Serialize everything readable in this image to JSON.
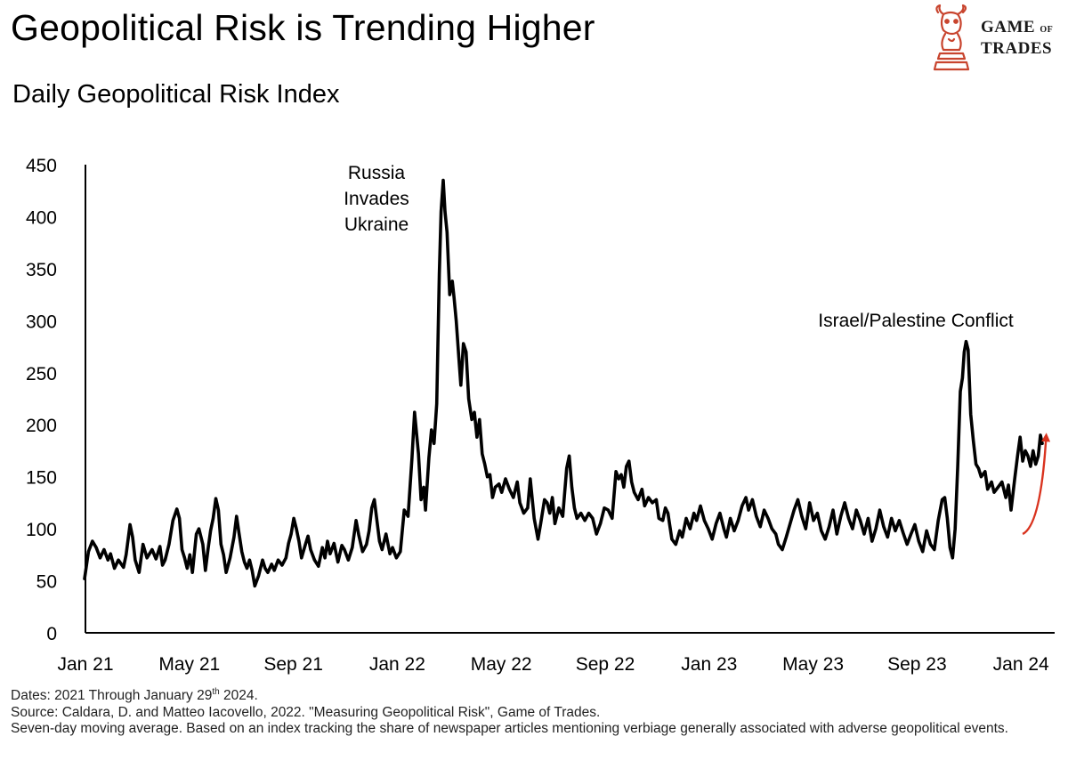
{
  "header": {
    "title": "Geopolitical Risk is Trending Higher",
    "subtitle": "Daily Geopolitical Risk Index"
  },
  "logo": {
    "line1": "GAME",
    "line1_small": "OF",
    "line2": "TRADES",
    "icon": "bull-knight-icon",
    "color": "#c8442e"
  },
  "footnotes": {
    "dates_prefix": "Dates: 2021 Through January 29",
    "dates_sup": "th",
    "dates_suffix": " 2024.",
    "source": "Source: Caldara, D. and Matteo Iacovello, 2022. \"Measuring Geopolitical Risk\", Game of Trades.",
    "method": "Seven-day moving average. Based on an index tracking the share of newspaper articles mentioning verbiage generally associated with adverse geopolitical events."
  },
  "chart_data": {
    "type": "line",
    "title": "Daily Geopolitical Risk Index",
    "xlabel": "",
    "ylabel": "",
    "ylim": [
      0,
      450
    ],
    "yticks": [
      "0",
      "50",
      "100",
      "150",
      "200",
      "250",
      "300",
      "350",
      "400",
      "450"
    ],
    "xlim": [
      0,
      36.9
    ],
    "xticks": [
      {
        "label": "Jan 21",
        "month": 0
      },
      {
        "label": "May 21",
        "month": 4
      },
      {
        "label": "Sep 21",
        "month": 8
      },
      {
        "label": "Jan 22",
        "month": 12
      },
      {
        "label": "May 22",
        "month": 16
      },
      {
        "label": "Sep 22",
        "month": 20
      },
      {
        "label": "Jan 23",
        "month": 24
      },
      {
        "label": "May 23",
        "month": 28
      },
      {
        "label": "Sep 23",
        "month": 32
      },
      {
        "label": "Jan 24",
        "month": 36
      }
    ],
    "line_color": "#000000",
    "series": [
      {
        "name": "Geopolitical Risk Index (7-day MA)",
        "points": [
          [
            0.0,
            52
          ],
          [
            0.15,
            78
          ],
          [
            0.3,
            88
          ],
          [
            0.45,
            82
          ],
          [
            0.6,
            72
          ],
          [
            0.75,
            80
          ],
          [
            0.9,
            70
          ],
          [
            1.0,
            76
          ],
          [
            1.15,
            62
          ],
          [
            1.3,
            70
          ],
          [
            1.5,
            63
          ],
          [
            1.6,
            75
          ],
          [
            1.75,
            104
          ],
          [
            1.85,
            92
          ],
          [
            1.95,
            70
          ],
          [
            2.1,
            58
          ],
          [
            2.25,
            85
          ],
          [
            2.4,
            72
          ],
          [
            2.6,
            80
          ],
          [
            2.75,
            71
          ],
          [
            2.9,
            83
          ],
          [
            3.0,
            65
          ],
          [
            3.1,
            70
          ],
          [
            3.25,
            85
          ],
          [
            3.4,
            108
          ],
          [
            3.55,
            119
          ],
          [
            3.65,
            110
          ],
          [
            3.75,
            80
          ],
          [
            3.85,
            72
          ],
          [
            3.95,
            62
          ],
          [
            4.05,
            75
          ],
          [
            4.15,
            58
          ],
          [
            4.3,
            95
          ],
          [
            4.4,
            100
          ],
          [
            4.55,
            85
          ],
          [
            4.65,
            60
          ],
          [
            4.75,
            80
          ],
          [
            4.85,
            98
          ],
          [
            4.95,
            110
          ],
          [
            5.05,
            129
          ],
          [
            5.15,
            118
          ],
          [
            5.25,
            85
          ],
          [
            5.35,
            75
          ],
          [
            5.45,
            58
          ],
          [
            5.6,
            72
          ],
          [
            5.75,
            92
          ],
          [
            5.85,
            112
          ],
          [
            5.95,
            95
          ],
          [
            6.05,
            78
          ],
          [
            6.15,
            68
          ],
          [
            6.25,
            62
          ],
          [
            6.35,
            70
          ],
          [
            6.45,
            60
          ],
          [
            6.55,
            45
          ],
          [
            6.7,
            55
          ],
          [
            6.85,
            70
          ],
          [
            6.95,
            62
          ],
          [
            7.05,
            58
          ],
          [
            7.2,
            66
          ],
          [
            7.3,
            60
          ],
          [
            7.45,
            70
          ],
          [
            7.6,
            65
          ],
          [
            7.75,
            72
          ],
          [
            7.85,
            86
          ],
          [
            7.95,
            95
          ],
          [
            8.05,
            110
          ],
          [
            8.15,
            100
          ],
          [
            8.25,
            88
          ],
          [
            8.35,
            72
          ],
          [
            8.5,
            85
          ],
          [
            8.6,
            93
          ],
          [
            8.7,
            80
          ],
          [
            8.85,
            70
          ],
          [
            9.0,
            64
          ],
          [
            9.15,
            82
          ],
          [
            9.25,
            72
          ],
          [
            9.35,
            88
          ],
          [
            9.45,
            76
          ],
          [
            9.6,
            86
          ],
          [
            9.75,
            68
          ],
          [
            9.9,
            84
          ],
          [
            10.0,
            80
          ],
          [
            10.15,
            70
          ],
          [
            10.3,
            82
          ],
          [
            10.45,
            108
          ],
          [
            10.55,
            94
          ],
          [
            10.7,
            78
          ],
          [
            10.85,
            85
          ],
          [
            10.95,
            98
          ],
          [
            11.05,
            120
          ],
          [
            11.15,
            128
          ],
          [
            11.25,
            108
          ],
          [
            11.35,
            88
          ],
          [
            11.45,
            80
          ],
          [
            11.6,
            95
          ],
          [
            11.75,
            76
          ],
          [
            11.85,
            82
          ],
          [
            12.0,
            72
          ],
          [
            12.15,
            78
          ],
          [
            12.3,
            118
          ],
          [
            12.45,
            112
          ],
          [
            12.6,
            168
          ],
          [
            12.7,
            212
          ],
          [
            12.85,
            172
          ],
          [
            12.95,
            128
          ],
          [
            13.05,
            140
          ],
          [
            13.12,
            118
          ],
          [
            13.25,
            168
          ],
          [
            13.35,
            195
          ],
          [
            13.45,
            182
          ],
          [
            13.55,
            220
          ],
          [
            13.65,
            345
          ],
          [
            13.72,
            405
          ],
          [
            13.8,
            435
          ],
          [
            13.87,
            405
          ],
          [
            13.95,
            385
          ],
          [
            14.05,
            325
          ],
          [
            14.15,
            338
          ],
          [
            14.22,
            322
          ],
          [
            14.3,
            300
          ],
          [
            14.4,
            265
          ],
          [
            14.48,
            238
          ],
          [
            14.58,
            278
          ],
          [
            14.68,
            270
          ],
          [
            14.78,
            225
          ],
          [
            14.9,
            205
          ],
          [
            15.0,
            212
          ],
          [
            15.1,
            188
          ],
          [
            15.2,
            205
          ],
          [
            15.3,
            172
          ],
          [
            15.4,
            162
          ],
          [
            15.5,
            150
          ],
          [
            15.6,
            152
          ],
          [
            15.7,
            130
          ],
          [
            15.8,
            140
          ],
          [
            15.95,
            143
          ],
          [
            16.05,
            135
          ],
          [
            16.2,
            148
          ],
          [
            16.35,
            138
          ],
          [
            16.5,
            130
          ],
          [
            16.65,
            145
          ],
          [
            16.75,
            125
          ],
          [
            16.9,
            115
          ],
          [
            17.05,
            120
          ],
          [
            17.15,
            148
          ],
          [
            17.3,
            110
          ],
          [
            17.45,
            90
          ],
          [
            17.55,
            105
          ],
          [
            17.7,
            128
          ],
          [
            17.8,
            125
          ],
          [
            17.9,
            115
          ],
          [
            18.0,
            130
          ],
          [
            18.1,
            105
          ],
          [
            18.25,
            120
          ],
          [
            18.4,
            112
          ],
          [
            18.55,
            158
          ],
          [
            18.65,
            170
          ],
          [
            18.75,
            140
          ],
          [
            18.85,
            120
          ],
          [
            18.95,
            110
          ],
          [
            19.1,
            115
          ],
          [
            19.25,
            108
          ],
          [
            19.4,
            115
          ],
          [
            19.55,
            110
          ],
          [
            19.7,
            95
          ],
          [
            19.85,
            105
          ],
          [
            20.0,
            120
          ],
          [
            20.15,
            118
          ],
          [
            20.3,
            110
          ],
          [
            20.45,
            155
          ],
          [
            20.55,
            148
          ],
          [
            20.65,
            152
          ],
          [
            20.75,
            140
          ],
          [
            20.85,
            160
          ],
          [
            20.95,
            165
          ],
          [
            21.05,
            145
          ],
          [
            21.15,
            135
          ],
          [
            21.3,
            128
          ],
          [
            21.45,
            138
          ],
          [
            21.55,
            122
          ],
          [
            21.7,
            130
          ],
          [
            21.85,
            125
          ],
          [
            22.0,
            128
          ],
          [
            22.1,
            110
          ],
          [
            22.25,
            108
          ],
          [
            22.35,
            120
          ],
          [
            22.45,
            115
          ],
          [
            22.6,
            90
          ],
          [
            22.75,
            85
          ],
          [
            22.9,
            98
          ],
          [
            23.0,
            92
          ],
          [
            23.15,
            110
          ],
          [
            23.3,
            100
          ],
          [
            23.45,
            115
          ],
          [
            23.55,
            108
          ],
          [
            23.7,
            122
          ],
          [
            23.85,
            108
          ],
          [
            24.0,
            100
          ],
          [
            24.15,
            90
          ],
          [
            24.3,
            105
          ],
          [
            24.45,
            115
          ],
          [
            24.6,
            100
          ],
          [
            24.7,
            92
          ],
          [
            24.85,
            110
          ],
          [
            25.0,
            98
          ],
          [
            25.15,
            108
          ],
          [
            25.3,
            122
          ],
          [
            25.45,
            130
          ],
          [
            25.55,
            118
          ],
          [
            25.7,
            128
          ],
          [
            25.85,
            112
          ],
          [
            26.0,
            102
          ],
          [
            26.15,
            118
          ],
          [
            26.3,
            110
          ],
          [
            26.45,
            100
          ],
          [
            26.6,
            95
          ],
          [
            26.7,
            85
          ],
          [
            26.85,
            80
          ],
          [
            27.0,
            92
          ],
          [
            27.15,
            105
          ],
          [
            27.3,
            118
          ],
          [
            27.45,
            128
          ],
          [
            27.6,
            112
          ],
          [
            27.75,
            100
          ],
          [
            27.9,
            125
          ],
          [
            28.05,
            108
          ],
          [
            28.2,
            115
          ],
          [
            28.35,
            98
          ],
          [
            28.5,
            90
          ],
          [
            28.65,
            102
          ],
          [
            28.8,
            118
          ],
          [
            28.95,
            95
          ],
          [
            29.1,
            112
          ],
          [
            29.25,
            125
          ],
          [
            29.4,
            110
          ],
          [
            29.55,
            100
          ],
          [
            29.7,
            118
          ],
          [
            29.85,
            108
          ],
          [
            30.0,
            95
          ],
          [
            30.15,
            110
          ],
          [
            30.3,
            88
          ],
          [
            30.45,
            100
          ],
          [
            30.6,
            118
          ],
          [
            30.75,
            102
          ],
          [
            30.9,
            92
          ],
          [
            31.05,
            110
          ],
          [
            31.2,
            98
          ],
          [
            31.35,
            108
          ],
          [
            31.5,
            96
          ],
          [
            31.65,
            85
          ],
          [
            31.8,
            95
          ],
          [
            31.95,
            104
          ],
          [
            32.1,
            88
          ],
          [
            32.25,
            78
          ],
          [
            32.4,
            98
          ],
          [
            32.55,
            85
          ],
          [
            32.7,
            80
          ],
          [
            32.85,
            108
          ],
          [
            33.0,
            128
          ],
          [
            33.1,
            130
          ],
          [
            33.2,
            110
          ],
          [
            33.3,
            82
          ],
          [
            33.4,
            72
          ],
          [
            33.5,
            100
          ],
          [
            33.6,
            160
          ],
          [
            33.7,
            232
          ],
          [
            33.78,
            245
          ],
          [
            33.85,
            270
          ],
          [
            33.92,
            280
          ],
          [
            34.0,
            272
          ],
          [
            34.1,
            210
          ],
          [
            34.2,
            185
          ],
          [
            34.3,
            162
          ],
          [
            34.4,
            158
          ],
          [
            34.5,
            150
          ],
          [
            34.65,
            155
          ],
          [
            34.75,
            138
          ],
          [
            34.9,
            145
          ],
          [
            35.0,
            135
          ],
          [
            35.15,
            140
          ],
          [
            35.3,
            145
          ],
          [
            35.45,
            130
          ],
          [
            35.55,
            142
          ],
          [
            35.65,
            118
          ],
          [
            35.8,
            150
          ],
          [
            35.9,
            170
          ],
          [
            36.0,
            188
          ],
          [
            36.1,
            165
          ],
          [
            36.2,
            175
          ],
          [
            36.3,
            170
          ],
          [
            36.4,
            160
          ],
          [
            36.5,
            175
          ],
          [
            36.6,
            162
          ],
          [
            36.7,
            170
          ],
          [
            36.78,
            190
          ],
          [
            36.85,
            182
          ]
        ]
      }
    ],
    "annotations": [
      {
        "id": "russia",
        "lines": [
          "Russia",
          "Invades",
          "Ukraine"
        ]
      },
      {
        "id": "israel",
        "lines": [
          "Israel/Palestine Conflict"
        ]
      }
    ],
    "trend_arrow": {
      "color": "#d9331f",
      "from": [
        36.1,
        95
      ],
      "to": [
        37.0,
        188
      ]
    }
  }
}
